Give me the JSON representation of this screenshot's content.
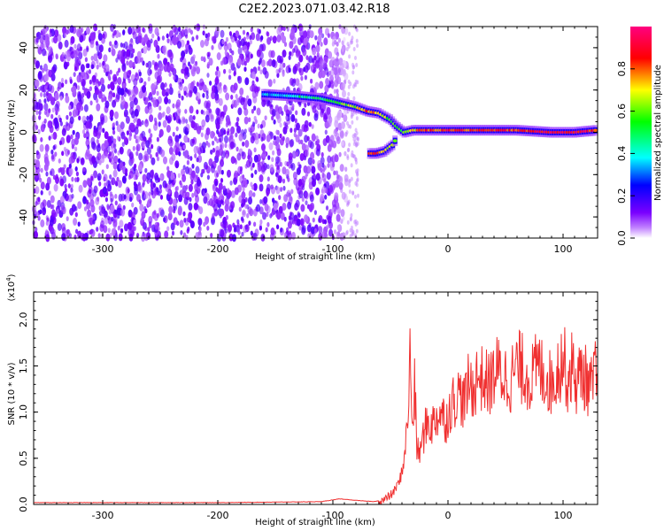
{
  "figure_title": "C2E2.2023.071.03.42.R18",
  "chart_data": [
    {
      "type": "heatmap",
      "title": "C2E2.2023.071.03.42.R18",
      "xlabel": "Height of straight line (km)",
      "ylabel": "Frequency (Hz)",
      "xlim": [
        -360,
        130
      ],
      "ylim": [
        -50,
        50
      ],
      "xticks": [
        -300,
        -200,
        -100,
        0,
        100
      ],
      "yticks": [
        -40,
        -20,
        0,
        20,
        40
      ],
      "colorbar": {
        "label": "Normalized spectral amplitude",
        "range": [
          0.0,
          1.0
        ],
        "ticks": [
          0.0,
          0.2,
          0.4,
          0.6,
          0.8
        ],
        "colormap": [
          "#ffffff",
          "#7a00ff",
          "#0000ff",
          "#00ffff",
          "#00ff00",
          "#ffff00",
          "#ff0000",
          "#ff0080"
        ]
      },
      "noise_region": {
        "x_range": [
          -360,
          -88
        ],
        "y_range": [
          -50,
          50
        ]
      },
      "signal_trace": [
        {
          "x": -160,
          "y": 18,
          "amp": 0.35
        },
        {
          "x": -130,
          "y": 17,
          "amp": 0.45
        },
        {
          "x": -110,
          "y": 16,
          "amp": 0.5
        },
        {
          "x": -95,
          "y": 14,
          "amp": 0.55
        },
        {
          "x": -80,
          "y": 12,
          "amp": 0.65
        },
        {
          "x": -70,
          "y": 10,
          "amp": 0.8
        },
        {
          "x": -60,
          "y": 9,
          "amp": 0.7
        },
        {
          "x": -50,
          "y": 6,
          "amp": 0.6
        },
        {
          "x": -45,
          "y": 3,
          "amp": 0.55
        },
        {
          "x": -38,
          "y": 0,
          "amp": 0.6
        },
        {
          "x": -30,
          "y": 1,
          "amp": 0.7
        },
        {
          "x": -20,
          "y": 1,
          "amp": 0.8
        },
        {
          "x": 0,
          "y": 1,
          "amp": 0.85
        },
        {
          "x": 30,
          "y": 1,
          "amp": 0.8
        },
        {
          "x": 60,
          "y": 1,
          "amp": 0.85
        },
        {
          "x": 90,
          "y": 0,
          "amp": 0.9
        },
        {
          "x": 110,
          "y": 0,
          "amp": 0.9
        },
        {
          "x": 130,
          "y": 1,
          "amp": 0.85
        }
      ],
      "secondary_trace": [
        {
          "x": -68,
          "y": -10,
          "amp": 0.85
        },
        {
          "x": -62,
          "y": -10,
          "amp": 0.9
        },
        {
          "x": -55,
          "y": -9,
          "amp": 0.7
        },
        {
          "x": -48,
          "y": -6,
          "amp": 0.6
        },
        {
          "x": -44,
          "y": -2,
          "amp": 0.55
        }
      ]
    },
    {
      "type": "line",
      "xlabel": "Height of straight line (km)",
      "ylabel": "SNR (10 * v/v)",
      "y_scale_label": "(x10",
      "y_scale_exponent": "4",
      "y_scale_close": ")",
      "xlim": [
        -360,
        130
      ],
      "ylim": [
        0.0,
        2.3
      ],
      "xticks": [
        -300,
        -200,
        -100,
        0,
        100
      ],
      "yticks": [
        0.0,
        0.5,
        1.0,
        1.5,
        2.0
      ],
      "color": "#f03030",
      "series": [
        {
          "x": [
            -360,
            -300,
            -200,
            -110,
            -95,
            -85,
            -75,
            -65,
            -55,
            -48,
            -42,
            -38,
            -35,
            -33,
            -31,
            -29,
            -27,
            -25,
            -22,
            -18,
            -14,
            -10,
            -6,
            -2,
            2,
            6,
            10,
            14,
            18,
            22,
            26,
            30,
            36,
            42,
            48,
            54,
            60,
            66,
            72,
            78,
            84,
            90,
            95,
            100,
            104,
            108,
            112,
            116,
            120,
            124,
            128,
            130
          ],
          "y": [
            0.02,
            0.02,
            0.02,
            0.03,
            0.06,
            0.05,
            0.04,
            0.03,
            0.05,
            0.12,
            0.25,
            0.5,
            0.9,
            1.6,
            0.8,
            1.3,
            0.6,
            0.55,
            0.7,
            0.9,
            0.85,
            0.95,
            1.0,
            0.9,
            1.05,
            1.15,
            1.2,
            1.1,
            1.3,
            1.25,
            1.4,
            1.35,
            1.3,
            1.45,
            1.4,
            1.35,
            1.5,
            1.45,
            1.35,
            1.5,
            1.4,
            1.3,
            1.45,
            1.6,
            1.35,
            1.5,
            1.3,
            1.45,
            1.35,
            1.25,
            1.4,
            1.3
          ]
        }
      ]
    }
  ]
}
